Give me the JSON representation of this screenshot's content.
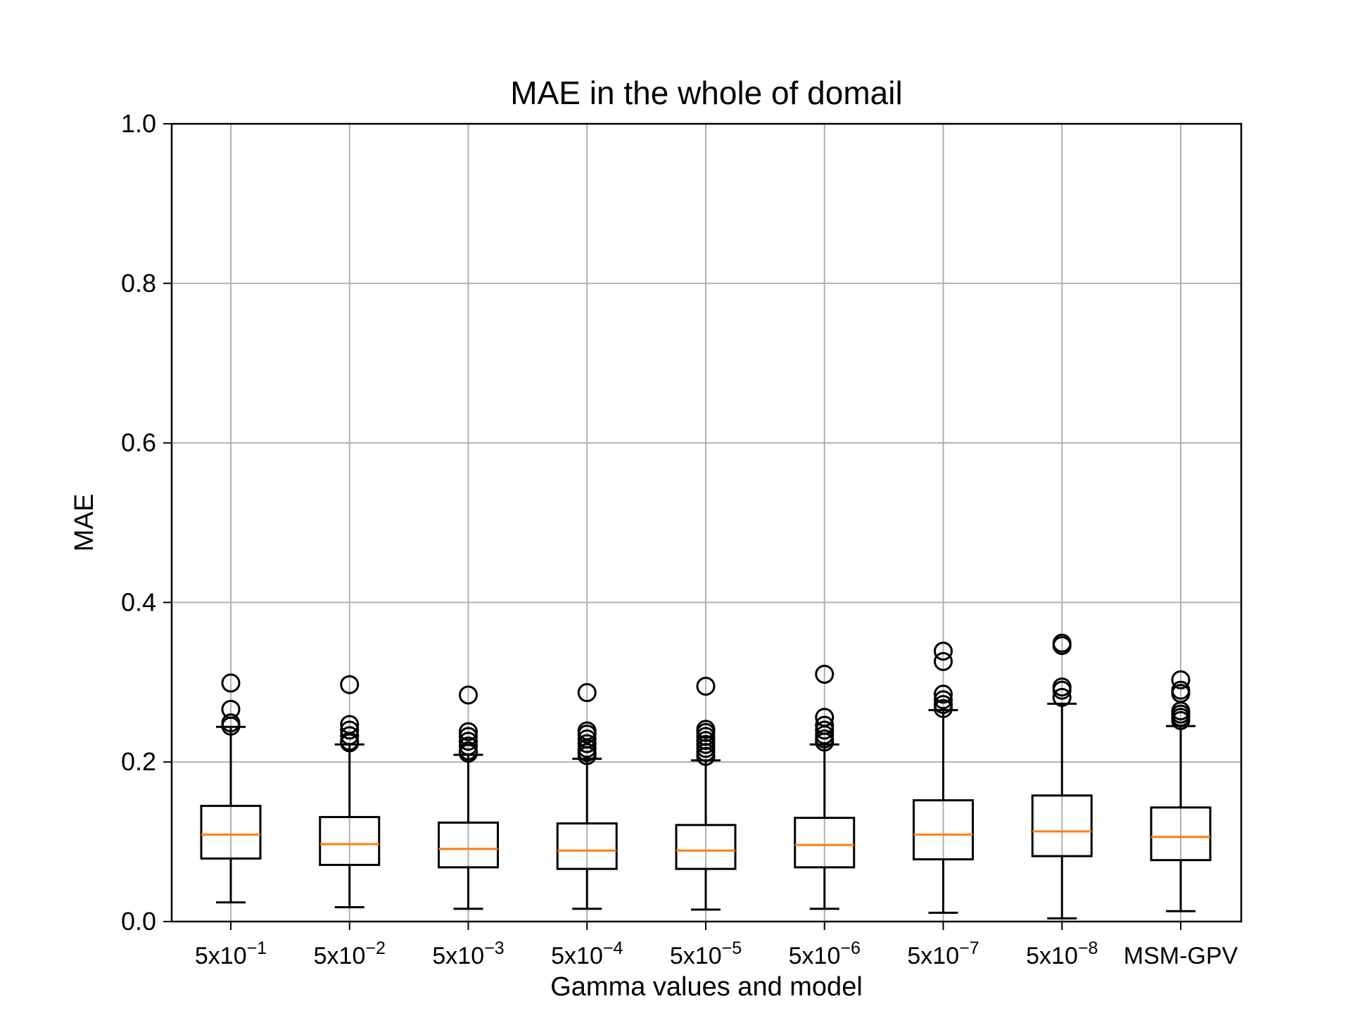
{
  "chart_data": {
    "type": "box",
    "title": "MAE in the whole of domail",
    "xlabel": "Gamma values and model",
    "ylabel": "MAE",
    "ylim": [
      0,
      1.0
    ],
    "yticks": [
      "0.0",
      "0.2",
      "0.4",
      "0.6",
      "0.8",
      "1.0"
    ],
    "grid": true,
    "categories": [
      {
        "base": "5x10",
        "exp": "−1"
      },
      {
        "base": "5x10",
        "exp": "−2"
      },
      {
        "base": "5x10",
        "exp": "−3"
      },
      {
        "base": "5x10",
        "exp": "−4"
      },
      {
        "base": "5x10",
        "exp": "−5"
      },
      {
        "base": "5x10",
        "exp": "−6"
      },
      {
        "base": "5x10",
        "exp": "−7"
      },
      {
        "base": "5x10",
        "exp": "−8"
      },
      {
        "base": "MSM-GPV",
        "exp": ""
      }
    ],
    "boxes": [
      {
        "whislo": 0.024,
        "q1": 0.079,
        "med": 0.109,
        "q3": 0.145,
        "whishi": 0.244,
        "fliers": [
          0.299,
          0.266,
          0.249,
          0.245
        ]
      },
      {
        "whislo": 0.018,
        "q1": 0.071,
        "med": 0.097,
        "q3": 0.131,
        "whishi": 0.222,
        "fliers": [
          0.297,
          0.247,
          0.24,
          0.233,
          0.226,
          0.224
        ]
      },
      {
        "whislo": 0.016,
        "q1": 0.068,
        "med": 0.091,
        "q3": 0.124,
        "whishi": 0.209,
        "fliers": [
          0.284,
          0.238,
          0.232,
          0.226,
          0.22,
          0.214,
          0.211
        ]
      },
      {
        "whislo": 0.016,
        "q1": 0.066,
        "med": 0.089,
        "q3": 0.123,
        "whishi": 0.204,
        "fliers": [
          0.287,
          0.239,
          0.235,
          0.229,
          0.223,
          0.217,
          0.212,
          0.208
        ]
      },
      {
        "whislo": 0.015,
        "q1": 0.066,
        "med": 0.089,
        "q3": 0.121,
        "whishi": 0.202,
        "fliers": [
          0.295,
          0.241,
          0.237,
          0.232,
          0.227,
          0.222,
          0.217,
          0.212,
          0.207
        ]
      },
      {
        "whislo": 0.016,
        "q1": 0.068,
        "med": 0.096,
        "q3": 0.13,
        "whishi": 0.222,
        "fliers": [
          0.31,
          0.256,
          0.246,
          0.24,
          0.234,
          0.229,
          0.225
        ]
      },
      {
        "whislo": 0.011,
        "q1": 0.078,
        "med": 0.109,
        "q3": 0.152,
        "whishi": 0.265,
        "fliers": [
          0.339,
          0.326,
          0.285,
          0.278,
          0.272,
          0.267
        ]
      },
      {
        "whislo": 0.004,
        "q1": 0.082,
        "med": 0.113,
        "q3": 0.158,
        "whishi": 0.273,
        "fliers": [
          0.349,
          0.346,
          0.294,
          0.29,
          0.281
        ]
      },
      {
        "whislo": 0.013,
        "q1": 0.077,
        "med": 0.106,
        "q3": 0.143,
        "whishi": 0.245,
        "fliers": [
          0.303,
          0.29,
          0.286,
          0.264,
          0.26,
          0.256,
          0.252
        ]
      }
    ],
    "colors": {
      "box": "#000000",
      "median": "#ff7f0e",
      "grid": "#b0b0b0",
      "axis": "#000000"
    }
  }
}
